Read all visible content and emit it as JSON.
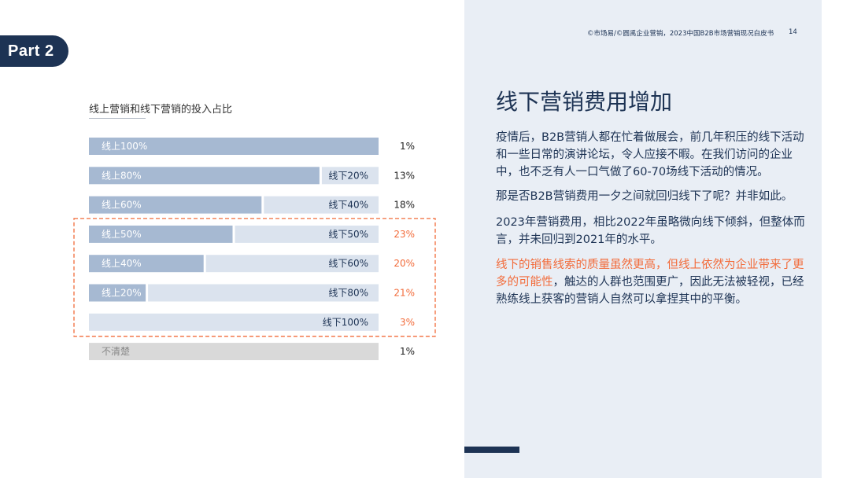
{
  "badge": "Part 2",
  "header": {
    "source": "©市场易/©圆禹企业营销，2023中国B2B市场营销现况白皮书",
    "page": "14"
  },
  "title": "线下营销费用增加",
  "paragraphs": {
    "p1": "疫情后，B2B营销人都在忙着做展会，前几年积压的线下活动和一些日常的演讲论坛，令人应接不暇。在我们访问的企业中，也不乏有人一口气做了60-70场线下活动的情况。",
    "p2": "那是否B2B营销费用一夕之间就回归线下了呢？并非如此。",
    "p3": "2023年营销费用，相比2022年虽略微向线下倾斜，但整体而言，并未回归到2021年的水平。",
    "p4_highlight": "线下的销售线索的质量虽然更高，但线上依然为企业带来了更多的可能性",
    "p4_rest": "，触达的人群也范围更广，因此无法被轻视，已经熟练线上获客的营销人自然可以拿捏其中的平衡。"
  },
  "colors": {
    "online": "#a6b9d2",
    "offline": "#dbe3ee",
    "unclear": "#d9d9d9",
    "accent": "#f26b3a",
    "navy": "#1d3354"
  },
  "chart_data": {
    "type": "bar",
    "title": "线上营销和线下营销的投入占比",
    "rows": [
      {
        "online": 100,
        "offline": 0,
        "online_label": "线上100%",
        "offline_label": "",
        "share": "1%",
        "highlight": false
      },
      {
        "online": 80,
        "offline": 20,
        "online_label": "线上80%",
        "offline_label": "线下20%",
        "share": "13%",
        "highlight": false
      },
      {
        "online": 60,
        "offline": 40,
        "online_label": "线上60%",
        "offline_label": "线下40%",
        "share": "18%",
        "highlight": false
      },
      {
        "online": 50,
        "offline": 50,
        "online_label": "线上50%",
        "offline_label": "线下50%",
        "share": "23%",
        "highlight": true
      },
      {
        "online": 40,
        "offline": 60,
        "online_label": "线上40%",
        "offline_label": "线下60%",
        "share": "20%",
        "highlight": true
      },
      {
        "online": 20,
        "offline": 80,
        "online_label": "线上20%",
        "offline_label": "线下80%",
        "share": "21%",
        "highlight": true
      },
      {
        "online": 0,
        "offline": 100,
        "online_label": "",
        "offline_label": "线下100%",
        "share": "3%",
        "highlight": true
      },
      {
        "online": 0,
        "offline": 0,
        "unclear": 100,
        "online_label": "不清楚",
        "offline_label": "",
        "share": "1%",
        "highlight": false
      }
    ]
  }
}
